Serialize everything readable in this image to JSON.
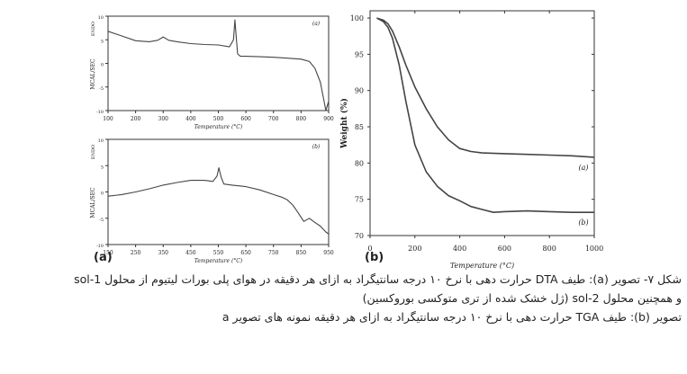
{
  "caption": [
    "شکل ۷- تصویر (a): طیف DTA حرارت دهی با نرخ ۱۰ درجه سانتیگراد به ازای هر دقیقه در هوای پلی بورات لیتیوم از محلول sol-1",
    "و همچنین محلول sol-2 (ژل خشک شده از تری متوکسی بوروکسین)",
    "تصویر (b): طیف TGA حرارت دهی با نرخ ۱۰ درجه سانتیگراد به ازای هر دقیقه نمونه های تصویر a"
  ],
  "chart_data": [
    {
      "type": "line",
      "panel_label": "(a)",
      "title": "",
      "xlabel": "Temperature (°C)",
      "ylabel": "MCAL/SEC",
      "top_axis_label": "ENDO",
      "xlim": [
        100,
        900
      ],
      "ylim": [
        -10,
        10
      ],
      "x_ticks": [
        "100",
        "200",
        "300",
        "400",
        "500",
        "600",
        "700",
        "800",
        "900"
      ],
      "y_ticks": [
        "10",
        "5",
        "0",
        "-5",
        "-10"
      ],
      "series": [
        {
          "name": "(a)",
          "x": [
            100,
            150,
            200,
            250,
            280,
            300,
            320,
            350,
            400,
            450,
            500,
            540,
            555,
            560,
            565,
            570,
            580,
            600,
            650,
            700,
            750,
            800,
            830,
            850,
            870,
            880,
            890,
            900
          ],
          "y": [
            6.8,
            5.8,
            4.8,
            4.6,
            4.9,
            5.6,
            4.9,
            4.6,
            4.2,
            4.0,
            3.9,
            3.5,
            5.0,
            9.2,
            5.5,
            2.0,
            1.5,
            1.5,
            1.4,
            1.3,
            1.1,
            0.9,
            0.4,
            -1.0,
            -4.0,
            -7.0,
            -10.0,
            -8.0
          ]
        }
      ]
    },
    {
      "type": "line",
      "panel_label": "(a)",
      "title": "",
      "xlabel": "Temperature (°C)",
      "ylabel": "MCAL/SEC",
      "top_axis_label": "ENDO",
      "xlim": [
        150,
        950
      ],
      "ylim": [
        -10,
        10
      ],
      "x_ticks": [
        "150",
        "250",
        "350",
        "450",
        "550",
        "650",
        "750",
        "850",
        "950"
      ],
      "y_ticks": [
        "10",
        "5",
        "0",
        "-5",
        "-10"
      ],
      "series": [
        {
          "name": "(b)",
          "x": [
            150,
            200,
            250,
            300,
            350,
            400,
            450,
            500,
            530,
            545,
            552,
            560,
            570,
            600,
            650,
            700,
            750,
            780,
            800,
            820,
            840,
            860,
            880,
            900,
            920,
            940,
            950
          ],
          "y": [
            -0.8,
            -0.5,
            0.0,
            0.6,
            1.3,
            1.8,
            2.2,
            2.2,
            2.0,
            3.0,
            4.6,
            2.8,
            1.5,
            1.3,
            1.0,
            0.4,
            -0.5,
            -1.0,
            -1.5,
            -2.5,
            -4.0,
            -5.6,
            -5.0,
            -5.8,
            -6.5,
            -7.6,
            -8.0
          ]
        }
      ]
    },
    {
      "type": "line",
      "panel_label": "(b)",
      "title": "",
      "xlabel": "Temperature (°C)",
      "ylabel": "Weight (%)",
      "xlim": [
        0,
        1000
      ],
      "ylim": [
        70,
        101
      ],
      "x_ticks": [
        "0",
        "200",
        "400",
        "600",
        "800",
        "1000"
      ],
      "y_ticks": [
        "70",
        "75",
        "80",
        "85",
        "90",
        "95",
        "100"
      ],
      "series": [
        {
          "name": "(a)",
          "x": [
            30,
            60,
            80,
            100,
            130,
            160,
            200,
            250,
            300,
            350,
            400,
            450,
            500,
            600,
            700,
            800,
            900,
            1000
          ],
          "y": [
            100.0,
            99.7,
            99.2,
            98.2,
            96.0,
            93.5,
            90.5,
            87.5,
            85.0,
            83.2,
            82.0,
            81.6,
            81.4,
            81.3,
            81.2,
            81.1,
            81.0,
            80.8
          ]
        },
        {
          "name": "(b)",
          "x": [
            30,
            60,
            80,
            100,
            130,
            160,
            200,
            250,
            300,
            350,
            400,
            450,
            500,
            550,
            600,
            700,
            800,
            900,
            1000
          ],
          "y": [
            100.0,
            99.5,
            98.7,
            97.2,
            93.5,
            88.5,
            82.5,
            78.8,
            76.8,
            75.5,
            74.8,
            74.0,
            73.6,
            73.2,
            73.3,
            73.4,
            73.3,
            73.2,
            73.2
          ]
        }
      ]
    }
  ]
}
